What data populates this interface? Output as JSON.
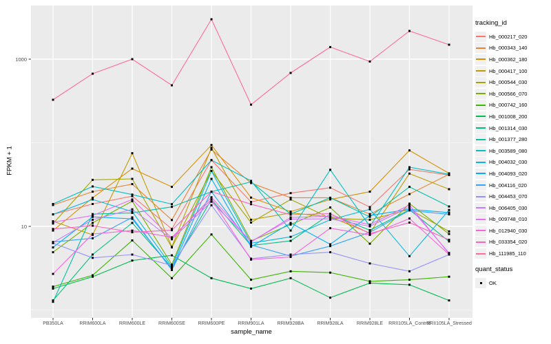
{
  "figure": {
    "y_axis": {
      "title": "FPKM + 1"
    },
    "x_axis": {
      "title": "sample_name"
    },
    "legend": {
      "tracking_title": "tracking_id",
      "quant_title": "quant_status",
      "quant_ok_label": "OK"
    }
  },
  "chart_data": {
    "type": "line",
    "title": "",
    "xlabel": "sample_name",
    "ylabel": "FPKM + 1",
    "y_scale": "log10",
    "ylim": [
      0.8,
      4380
    ],
    "y_ticks": [
      10,
      1000
    ],
    "y_minor_gridlines": [
      1,
      100
    ],
    "grid": true,
    "legend_position": "right",
    "point_marker": "black-square",
    "point_status_label": "OK",
    "panel_background": "#EBEBEB",
    "categories": [
      "PB350LA",
      "RRIM600LA",
      "RRIM600LE",
      "RRIM600SE",
      "RRIM600PE",
      "RRIM901LA",
      "RRIM928BA",
      "RRIM928LA",
      "RRIM928LE",
      "RRII105LA_Control",
      "RRII105LA_Stressed"
    ],
    "series": [
      {
        "name": "Hb_000217_020",
        "color": "#F8766D",
        "values": [
          13.9,
          18.5,
          23,
          9.3,
          62,
          19.6,
          25,
          29,
          17,
          48,
          41
        ]
      },
      {
        "name": "Hb_000343_140",
        "color": "#EA8331",
        "values": [
          18,
          26,
          32,
          11.9,
          83,
          33,
          22,
          22,
          14,
          24.3,
          42
        ]
      },
      {
        "name": "Hb_000362_180",
        "color": "#D89000",
        "values": [
          8.9,
          22,
          49,
          29.7,
          94,
          22.1,
          15,
          21,
          26,
          81,
          43
        ]
      },
      {
        "name": "Hb_000417_100",
        "color": "#C09B00",
        "values": [
          11.5,
          7.9,
          75,
          5.7,
          87,
          12,
          14.5,
          13,
          8.3,
          42.8,
          27.8
        ]
      },
      {
        "name": "Hb_000544_030",
        "color": "#A3A500",
        "values": [
          10.8,
          36,
          37,
          5.6,
          46,
          11.1,
          21,
          12.5,
          12,
          16,
          8.7
        ]
      },
      {
        "name": "Hb_000566_070",
        "color": "#7CAE00",
        "values": [
          4.9,
          11,
          20,
          3.5,
          51,
          6.7,
          10.5,
          16.8,
          6.2,
          18.7,
          8.1
        ]
      },
      {
        "name": "Hb_000742_160",
        "color": "#39B600",
        "values": [
          1.9,
          2.6,
          6.8,
          2.4,
          8,
          2.3,
          2.9,
          2.8,
          2.2,
          2.3,
          2.5
        ]
      },
      {
        "name": "Hb_001008_200",
        "color": "#00BB4E",
        "values": [
          1.8,
          2.5,
          3.9,
          4.5,
          2.4,
          1.8,
          2.4,
          1.4,
          2.1,
          2.0,
          1.3
        ]
      },
      {
        "name": "Hb_001314_030",
        "color": "#00BF7D",
        "values": [
          1.3,
          4.6,
          11,
          3.2,
          21,
          5.9,
          6.7,
          14,
          9,
          15.8,
          6.6
        ]
      },
      {
        "name": "Hb_001377_280",
        "color": "#00C1A3",
        "values": [
          1.25,
          14,
          14.5,
          17.1,
          26,
          34,
          14,
          22,
          13,
          29.7,
          17.3
        ]
      },
      {
        "name": "Hb_003589_080",
        "color": "#00BFC4",
        "values": [
          18.5,
          30,
          24,
          18.4,
          62,
          35,
          8.9,
          47.5,
          10,
          51,
          42
        ]
      },
      {
        "name": "Hb_004032_030",
        "color": "#00BAE0",
        "values": [
          13.9,
          21,
          15,
          3.3,
          46,
          6.3,
          7.5,
          12,
          16,
          4.4,
          15.7
        ]
      },
      {
        "name": "Hb_004093_020",
        "color": "#00B0F6",
        "values": [
          5.6,
          13,
          12.3,
          3.1,
          37,
          5.7,
          11,
          6.1,
          13.5,
          16,
          14.6
        ]
      },
      {
        "name": "Hb_004116_020",
        "color": "#35A2FF",
        "values": [
          6.5,
          7.2,
          12.8,
          3.0,
          26,
          6.0,
          4.4,
          5.8,
          8.5,
          15.5,
          13.9
        ]
      },
      {
        "name": "Hb_004453_070",
        "color": "#9590FF",
        "values": [
          6.3,
          4.2,
          4.6,
          3.4,
          17.9,
          4.1,
          4.6,
          4.9,
          3.6,
          2.9,
          4.6
        ]
      },
      {
        "name": "Hb_006405_030",
        "color": "#C77CFF",
        "values": [
          6.4,
          12,
          16,
          7.0,
          19.7,
          6.6,
          12.2,
          12.3,
          10,
          17,
          4.8
        ]
      },
      {
        "name": "Hb_009748_010",
        "color": "#E76BF3",
        "values": [
          11.2,
          13.5,
          21,
          7.2,
          22.3,
          6.5,
          12.8,
          13.2,
          10.5,
          18,
          4.7
        ]
      },
      {
        "name": "Hb_012940_030",
        "color": "#FA62DB",
        "values": [
          2.7,
          8.1,
          8.9,
          7.4,
          21,
          4.0,
          4.3,
          9.5,
          7.9,
          12.4,
          4.6
        ]
      },
      {
        "name": "Hb_033354_020",
        "color": "#FF62BC",
        "values": [
          9.3,
          10.2,
          8.5,
          9.0,
          26,
          18.4,
          13.8,
          14.2,
          8.2,
          11.1,
          6.9
        ]
      },
      {
        "name": "Hb_111985_110",
        "color": "#FF6A98",
        "values": [
          327,
          671,
          1000,
          487,
          3000,
          286,
          684,
          1397,
          938,
          2173,
          1489
        ]
      }
    ]
  }
}
